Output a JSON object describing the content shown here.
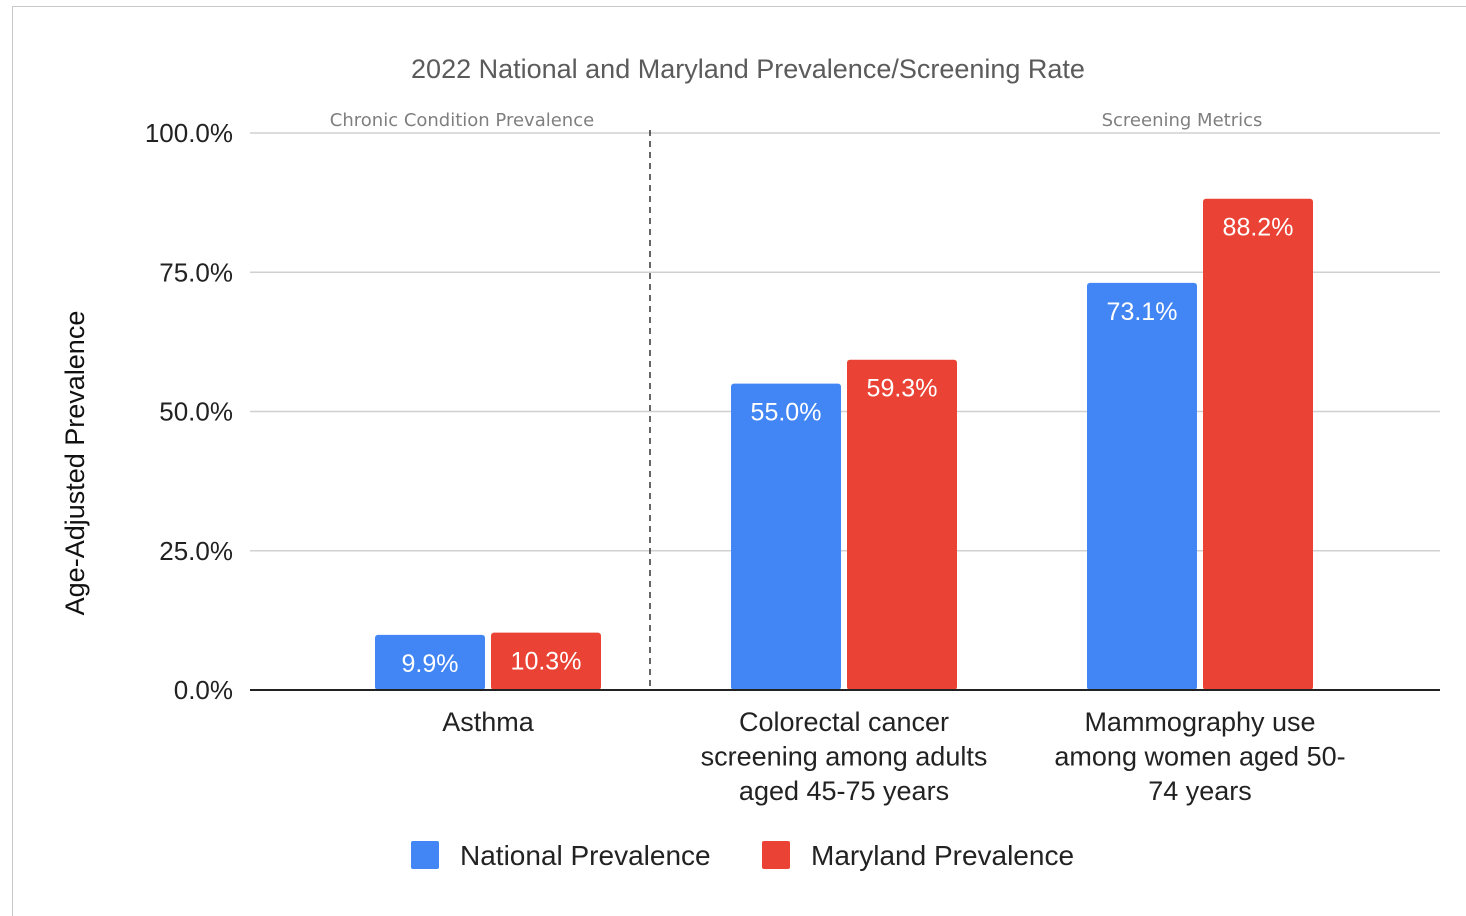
{
  "chart_data": {
    "type": "bar",
    "title": "2022 National and Maryland Prevalence/Screening Rate",
    "ylabel": "Age-Adjusted Prevalence",
    "xlabel": "",
    "ylim": [
      0,
      100
    ],
    "yticks": [
      "0.0%",
      "25.0%",
      "50.0%",
      "75.0%",
      "100.0%"
    ],
    "ytick_values": [
      0,
      25,
      50,
      75,
      100
    ],
    "grid": true,
    "legend_position": "bottom",
    "categories": [
      [
        "Asthma"
      ],
      [
        "Colorectal cancer",
        "screening among adults",
        "aged 45-75 years"
      ],
      [
        "Mammography use",
        "among women aged 50-",
        "74 years"
      ]
    ],
    "series": [
      {
        "name": "National Prevalence",
        "color": "#4285f4",
        "values": [
          9.9,
          55.0,
          73.1
        ],
        "labels": [
          "9.9%",
          "55.0%",
          "73.1%"
        ]
      },
      {
        "name": "Maryland Prevalence",
        "color": "#ea4335",
        "values": [
          10.3,
          59.3,
          88.2
        ],
        "labels": [
          "10.3%",
          "59.3%",
          "88.2%"
        ]
      }
    ],
    "sections": [
      {
        "label": "Chronic Condition Prevalence"
      },
      {
        "label": "Screening Metrics"
      }
    ]
  }
}
